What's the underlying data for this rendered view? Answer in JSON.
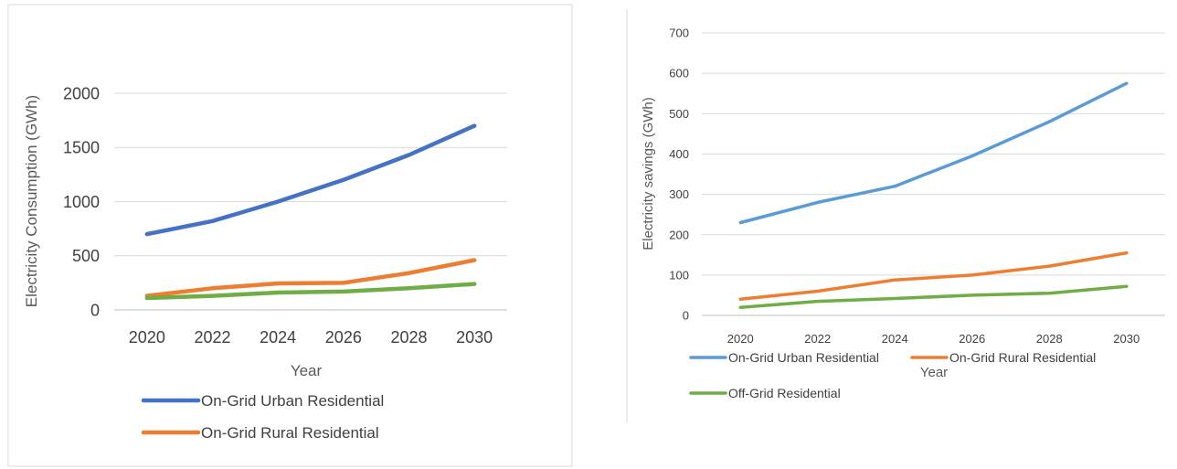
{
  "chart_data": [
    {
      "type": "line",
      "title": "",
      "xlabel": "Year",
      "ylabel": "Electricity Consumption (GWh)",
      "x": [
        "2020",
        "2022",
        "2024",
        "2026",
        "2028",
        "2030"
      ],
      "yticks": [
        "0",
        "500",
        "1000",
        "1500",
        "2000"
      ],
      "ylim": [
        0,
        2000
      ],
      "grid": true,
      "legend_placement": "bottom",
      "series": [
        {
          "name": "On-Grid Urban Residential",
          "color": "#4472C4",
          "values": [
            700,
            820,
            1000,
            1200,
            1430,
            1700
          ]
        },
        {
          "name": "On-Grid Rural Residential",
          "color": "#ED7D31",
          "values": [
            130,
            200,
            245,
            250,
            340,
            460
          ]
        },
        {
          "name": "",
          "color": "#70AD47",
          "values": [
            110,
            130,
            160,
            170,
            200,
            240
          ]
        }
      ],
      "legend": [
        "On-Grid Urban Residential",
        "On-Grid Rural Residential"
      ]
    },
    {
      "type": "line",
      "title": "",
      "xlabel": "Year",
      "ylabel": "Electricity savings (GWh)",
      "x": [
        "2020",
        "2022",
        "2024",
        "2026",
        "2028",
        "2030"
      ],
      "yticks": [
        "0",
        "100",
        "200",
        "300",
        "400",
        "500",
        "600",
        "700"
      ],
      "ylim": [
        0,
        700
      ],
      "grid": true,
      "legend_placement": "bottom",
      "series": [
        {
          "name": "On-Grid Urban Residential",
          "color": "#5B9BD5",
          "values": [
            230,
            280,
            320,
            395,
            480,
            575
          ]
        },
        {
          "name": "On-Grid Rural Residential",
          "color": "#ED7D31",
          "values": [
            40,
            60,
            88,
            100,
            122,
            155
          ]
        },
        {
          "name": "Off-Grid Residential",
          "color": "#70AD47",
          "values": [
            20,
            35,
            42,
            50,
            55,
            72
          ]
        }
      ],
      "legend": [
        "On-Grid Urban Residential",
        "On-Grid Rural Residential",
        "Off-Grid Residential"
      ]
    }
  ]
}
